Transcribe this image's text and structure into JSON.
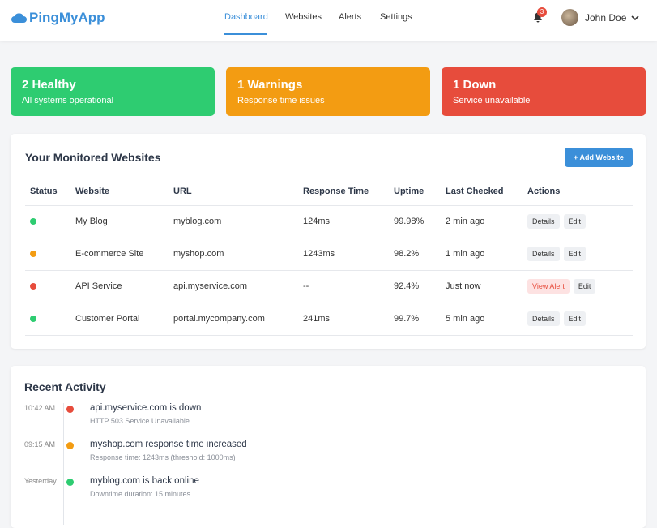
{
  "header": {
    "logo": "PingMyApp",
    "nav": [
      "Dashboard",
      "Websites",
      "Alerts",
      "Settings"
    ],
    "active_color": "#3b8fd9",
    "notification_count": "3",
    "user": "John Doe"
  },
  "summary": [
    {
      "title": "2 Healthy",
      "subtitle": "All systems operational",
      "color": "#2ecc71"
    },
    {
      "title": "1 Warnings",
      "subtitle": "Response time issues",
      "color": "#f39c12"
    },
    {
      "title": "1 Down",
      "subtitle": "Service unavailable",
      "color": "#e74c3c"
    }
  ],
  "table": {
    "title": "Your Monitored Websites",
    "add_button": "+ Add Website",
    "columns": [
      "Status",
      "Website",
      "URL",
      "Response Time",
      "Uptime",
      "Last Checked",
      "Actions"
    ],
    "rows": [
      {
        "color": "#2ecc71",
        "website": "My Blog",
        "url": "myblog.com",
        "response_time": "124ms",
        "uptime": "99.98%",
        "last_checked": "2 min ago",
        "actions": [
          "Details",
          "Edit"
        ]
      },
      {
        "color": "#f39c12",
        "website": "E-commerce Site",
        "url": "myshop.com",
        "response_time": "1243ms",
        "uptime": "98.2%",
        "last_checked": "1 min ago",
        "actions": [
          "Details",
          "Edit"
        ]
      },
      {
        "color": "#e74c3c",
        "website": "API Service",
        "url": "api.myservice.com",
        "response_time": "--",
        "uptime": "92.4%",
        "last_checked": "Just now",
        "actions": [
          "View Alert",
          "Edit"
        ]
      },
      {
        "color": "#2ecc71",
        "website": "Customer Portal",
        "url": "portal.mycompany.com",
        "response_time": "241ms",
        "uptime": "99.7%",
        "last_checked": "5 min ago",
        "actions": [
          "Details",
          "Edit"
        ]
      }
    ]
  },
  "activity": {
    "title": "Recent Activity",
    "items": [
      {
        "time": "10:42 AM",
        "color": "#e74c3c",
        "title": "api.myservice.com is down",
        "detail": "HTTP 503 Service Unavailable"
      },
      {
        "time": "09:15 AM",
        "color": "#f39c12",
        "title": "myshop.com response time increased",
        "detail": "Response time: 1243ms (threshold: 1000ms)"
      },
      {
        "time": "Yesterday",
        "color": "#2ecc71",
        "title": "myblog.com is back online",
        "detail": "Downtime duration: 15 minutes"
      }
    ]
  }
}
